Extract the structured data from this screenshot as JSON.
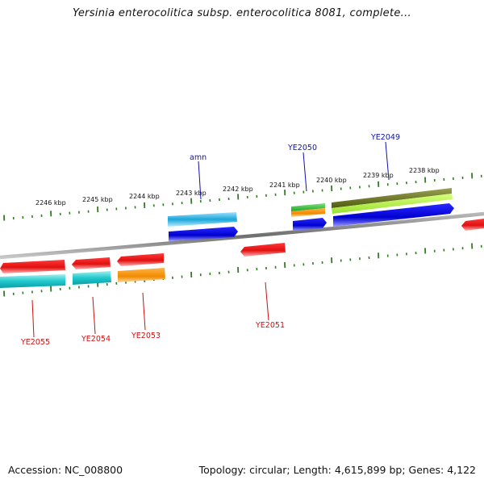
{
  "title": "Yersinia enterocolitica subsp. enterocolitica 8081, complete...",
  "footer": {
    "accession": "Accession: NC_008800",
    "summary": "Topology: circular; Length: 4,615,899 bp; Genes: 4,122"
  },
  "colors": {
    "backbone": "#8a8a8a",
    "tick": "#2e7d1e",
    "forward_label": "#1010aa",
    "reverse_label": "#cc1010"
  },
  "ruler": {
    "labels": [
      "2246 kbp",
      "2245 kbp",
      "2244 kbp",
      "2243 kbp",
      "2242 kbp",
      "2241 kbp",
      "2240 kbp",
      "2239 kbp",
      "2238 kbp"
    ]
  },
  "genes": {
    "forward": [
      {
        "label": "amn",
        "color": "#1aa6d8"
      },
      {
        "label": "YE2050",
        "color": "#2fbf2f"
      },
      {
        "label": "YE2049",
        "color": "#6b7a1c"
      }
    ],
    "reverse": [
      {
        "label": "YE2055",
        "color": "#e01010"
      },
      {
        "label": "YE2054",
        "color": "#e01010"
      },
      {
        "label": "YE2053",
        "color": "#e01010"
      },
      {
        "label": "YE2051",
        "color": "#e01010"
      }
    ]
  }
}
